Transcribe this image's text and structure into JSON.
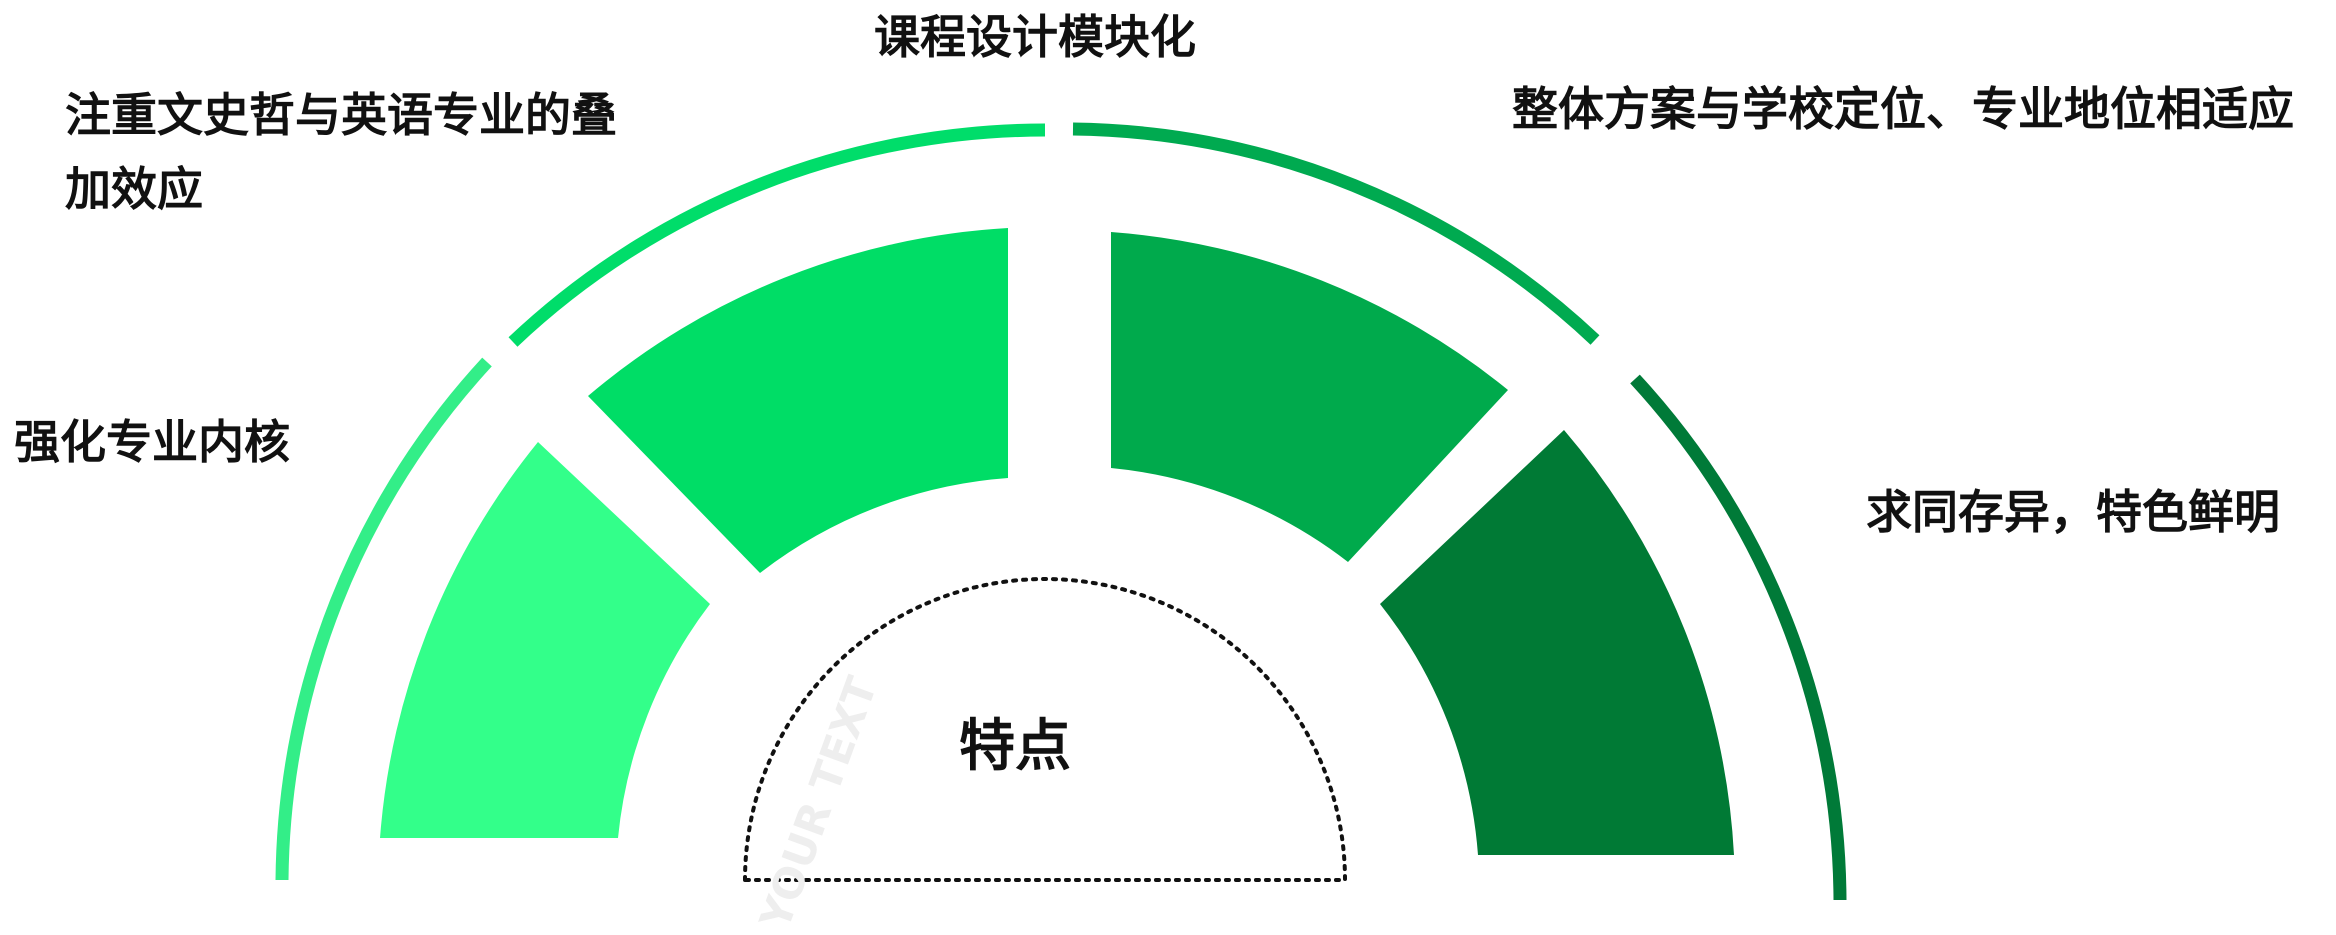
{
  "center": {
    "title": "特点",
    "ghost_text": "YOUR TEXT"
  },
  "labels": {
    "top": "课程设计模块化",
    "upper_left_line1": "注重文史哲与英语专业的叠",
    "upper_left_line2": "加效应",
    "left": "强化专业内核",
    "upper_right": "整体方案与学校定位、专业地位相适应",
    "right": "求同存异，特色鲜明"
  },
  "colors": {
    "segment_1": "#33FF8A",
    "segment_2": "#00DD66",
    "segment_3": "#00AA4C",
    "segment_4": "#007A35",
    "outer_1": "#33EE88",
    "outer_2": "#00DD6A",
    "outer_3": "#00AA50",
    "outer_4": "#007A38",
    "text": "#111111",
    "ghost": "#eeeeee"
  }
}
